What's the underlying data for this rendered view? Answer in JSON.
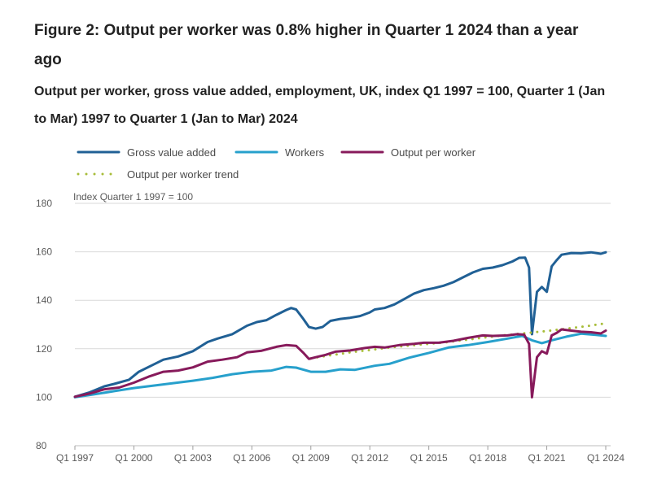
{
  "figure": {
    "title": "Figure 2: Output per worker was 0.8% higher in Quarter 1 2024 than a year ago",
    "subtitle": "Output per worker, gross value added, employment, UK, index Q1 1997 = 100, Quarter 1 (Jan to Mar) 1997 to Quarter 1 (Jan to Mar) 2024"
  },
  "chart_data": {
    "type": "line",
    "ylabel": "Index Quarter 1 1997 = 100",
    "ylim": [
      80,
      180
    ],
    "yticks": [
      80,
      100,
      120,
      140,
      160,
      180
    ],
    "xlim": [
      1997,
      2024
    ],
    "xticks": [
      {
        "label": "Q1 1997",
        "year": 1997
      },
      {
        "label": "Q1 2000",
        "year": 2000
      },
      {
        "label": "Q1 2003",
        "year": 2003
      },
      {
        "label": "Q1 2006",
        "year": 2006
      },
      {
        "label": "Q1 2009",
        "year": 2009
      },
      {
        "label": "Q1 2012",
        "year": 2012
      },
      {
        "label": "Q1 2015",
        "year": 2015
      },
      {
        "label": "Q1 2018",
        "year": 2018
      },
      {
        "label": "Q1 2021",
        "year": 2021
      },
      {
        "label": "Q1 2024",
        "year": 2024
      }
    ],
    "grid": "horizontal",
    "legend": "top",
    "series": [
      {
        "name": "Gross value added",
        "color": "#206095",
        "style": "solid",
        "points": [
          [
            1997,
            100.2
          ],
          [
            1997.75,
            102.0
          ],
          [
            1998.5,
            104.5
          ],
          [
            1999,
            105.5
          ],
          [
            1999.75,
            107.2
          ],
          [
            2000.25,
            110.5
          ],
          [
            2001,
            113.5
          ],
          [
            2001.5,
            115.5
          ],
          [
            2002.25,
            116.8
          ],
          [
            2003,
            119.0
          ],
          [
            2003.75,
            122.8
          ],
          [
            2004.25,
            124.2
          ],
          [
            2005,
            126.0
          ],
          [
            2005.75,
            129.5
          ],
          [
            2006.25,
            131.0
          ],
          [
            2006.75,
            131.8
          ],
          [
            2007.25,
            134.0
          ],
          [
            2007.75,
            136.0
          ],
          [
            2008,
            136.8
          ],
          [
            2008.25,
            136.2
          ],
          [
            2008.6,
            132.5
          ],
          [
            2008.9,
            129.0
          ],
          [
            2009.25,
            128.3
          ],
          [
            2009.6,
            129.0
          ],
          [
            2010,
            131.5
          ],
          [
            2010.5,
            132.3
          ],
          [
            2011,
            132.8
          ],
          [
            2011.5,
            133.5
          ],
          [
            2012,
            135.0
          ],
          [
            2012.25,
            136.2
          ],
          [
            2012.75,
            136.8
          ],
          [
            2013.25,
            138.3
          ],
          [
            2013.75,
            140.5
          ],
          [
            2014.25,
            142.8
          ],
          [
            2014.75,
            144.2
          ],
          [
            2015.25,
            145.0
          ],
          [
            2015.75,
            146.0
          ],
          [
            2016.25,
            147.5
          ],
          [
            2016.75,
            149.5
          ],
          [
            2017.25,
            151.5
          ],
          [
            2017.75,
            153.0
          ],
          [
            2018.25,
            153.5
          ],
          [
            2018.75,
            154.5
          ],
          [
            2019.25,
            156.0
          ],
          [
            2019.6,
            157.5
          ],
          [
            2019.9,
            157.6
          ],
          [
            2020.1,
            153.5
          ],
          [
            2020.25,
            126.0
          ],
          [
            2020.5,
            143.5
          ],
          [
            2020.75,
            145.5
          ],
          [
            2021,
            143.5
          ],
          [
            2021.25,
            154.0
          ],
          [
            2021.5,
            156.5
          ],
          [
            2021.75,
            158.8
          ],
          [
            2022.25,
            159.5
          ],
          [
            2022.75,
            159.4
          ],
          [
            2023.25,
            159.8
          ],
          [
            2023.75,
            159.2
          ],
          [
            2024,
            159.8
          ]
        ]
      },
      {
        "name": "Workers",
        "color": "#27a0cc",
        "style": "solid",
        "points": [
          [
            1997,
            100.0
          ],
          [
            1998,
            101.2
          ],
          [
            1999,
            102.5
          ],
          [
            2000,
            103.8
          ],
          [
            2001,
            104.8
          ],
          [
            2002,
            105.8
          ],
          [
            2003,
            106.8
          ],
          [
            2004,
            108.0
          ],
          [
            2005,
            109.5
          ],
          [
            2006,
            110.5
          ],
          [
            2007,
            111.0
          ],
          [
            2007.75,
            112.5
          ],
          [
            2008.25,
            112.2
          ],
          [
            2009,
            110.5
          ],
          [
            2009.75,
            110.5
          ],
          [
            2010.5,
            111.5
          ],
          [
            2011.25,
            111.3
          ],
          [
            2012.25,
            113.0
          ],
          [
            2013,
            113.8
          ],
          [
            2014,
            116.3
          ],
          [
            2015,
            118.3
          ],
          [
            2016,
            120.5
          ],
          [
            2017,
            121.5
          ],
          [
            2018,
            122.8
          ],
          [
            2019,
            124.2
          ],
          [
            2019.75,
            125.3
          ],
          [
            2020.25,
            123.5
          ],
          [
            2020.75,
            122.3
          ],
          [
            2021.25,
            123.5
          ],
          [
            2022,
            125.0
          ],
          [
            2022.75,
            126.2
          ],
          [
            2023.5,
            125.7
          ],
          [
            2024,
            125.3
          ]
        ]
      },
      {
        "name": "Output per worker",
        "color": "#871a5b",
        "style": "solid",
        "points": [
          [
            1997,
            100.2
          ],
          [
            1997.75,
            101.5
          ],
          [
            1998.5,
            103.3
          ],
          [
            1999.25,
            104.0
          ],
          [
            2000,
            106.0
          ],
          [
            2000.75,
            108.5
          ],
          [
            2001.5,
            110.5
          ],
          [
            2002.25,
            111.0
          ],
          [
            2003,
            112.3
          ],
          [
            2003.75,
            114.7
          ],
          [
            2004.5,
            115.5
          ],
          [
            2005.25,
            116.5
          ],
          [
            2005.75,
            118.5
          ],
          [
            2006.5,
            119.2
          ],
          [
            2007.25,
            120.8
          ],
          [
            2007.75,
            121.5
          ],
          [
            2008.25,
            121.2
          ],
          [
            2008.6,
            118.5
          ],
          [
            2008.9,
            115.8
          ],
          [
            2009.25,
            116.5
          ],
          [
            2009.75,
            117.5
          ],
          [
            2010.25,
            118.8
          ],
          [
            2011,
            119.3
          ],
          [
            2011.75,
            120.3
          ],
          [
            2012.25,
            120.8
          ],
          [
            2012.75,
            120.5
          ],
          [
            2013.5,
            121.5
          ],
          [
            2014.25,
            122.0
          ],
          [
            2014.75,
            122.5
          ],
          [
            2015.5,
            122.5
          ],
          [
            2016.25,
            123.3
          ],
          [
            2017,
            124.5
          ],
          [
            2017.75,
            125.5
          ],
          [
            2018.25,
            125.3
          ],
          [
            2019,
            125.5
          ],
          [
            2019.5,
            126.0
          ],
          [
            2019.85,
            125.8
          ],
          [
            2020.1,
            122.0
          ],
          [
            2020.25,
            100.0
          ],
          [
            2020.5,
            116.5
          ],
          [
            2020.75,
            119.0
          ],
          [
            2021,
            118.0
          ],
          [
            2021.25,
            125.5
          ],
          [
            2021.5,
            126.5
          ],
          [
            2021.75,
            128.0
          ],
          [
            2022.25,
            127.5
          ],
          [
            2022.75,
            127.0
          ],
          [
            2023.25,
            126.8
          ],
          [
            2023.75,
            126.3
          ],
          [
            2024,
            127.5
          ]
        ]
      },
      {
        "name": "Output per worker trend",
        "color": "#a8bd3a",
        "style": "dotted",
        "points": [
          [
            2009,
            116.0
          ],
          [
            2010,
            117.3
          ],
          [
            2011,
            118.5
          ],
          [
            2012,
            119.5
          ],
          [
            2013,
            120.5
          ],
          [
            2014,
            121.3
          ],
          [
            2015,
            122.0
          ],
          [
            2016,
            122.8
          ],
          [
            2017,
            123.8
          ],
          [
            2018,
            124.8
          ],
          [
            2019,
            125.7
          ],
          [
            2020,
            126.5
          ],
          [
            2021,
            127.3
          ],
          [
            2022,
            128.3
          ],
          [
            2023,
            129.3
          ],
          [
            2024,
            130.5
          ]
        ]
      }
    ]
  }
}
